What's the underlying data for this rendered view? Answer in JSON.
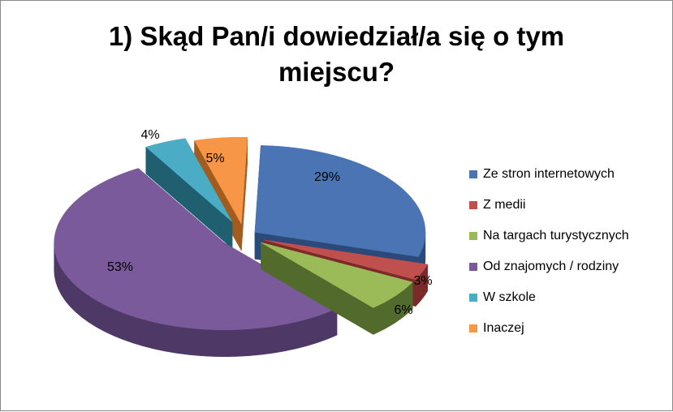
{
  "chart_data": {
    "type": "pie",
    "title_lines": [
      "1) Skąd Pan/i dowiedział/a się o tym",
      "miejscu?"
    ],
    "categories": [
      "Ze stron internetowych",
      "Z medii",
      "Na targach turystycznych",
      "Od znajomych / rodziny",
      "W szkole",
      "Inaczej"
    ],
    "values": [
      29,
      3,
      6,
      53,
      4,
      5
    ],
    "labels": [
      "29%",
      "3%",
      "6%",
      "53%",
      "4%",
      "5%"
    ],
    "colors": [
      "#4a74b3",
      "#c0504d",
      "#9bbb59",
      "#7a5a9a",
      "#4bacc6",
      "#f79646"
    ],
    "side_colors": [
      "#2b4a7a",
      "#7a2a28",
      "#526a2c",
      "#4d3866",
      "#1f5f70",
      "#a25c1e"
    ],
    "style": "3d-exploded",
    "legend_position": "right"
  }
}
